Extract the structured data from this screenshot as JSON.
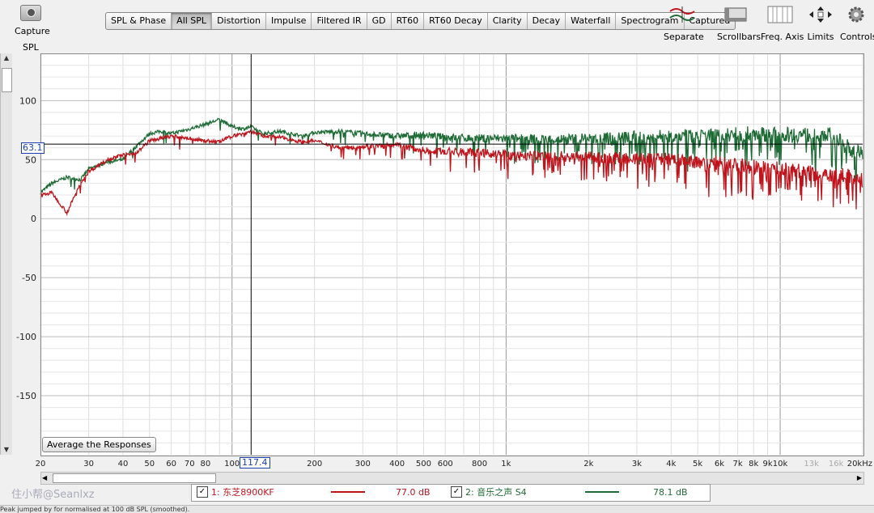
{
  "toolbar": {
    "capture_label": "Capture",
    "tabs": [
      {
        "label": "SPL & Phase",
        "active": false
      },
      {
        "label": "All SPL",
        "active": true
      },
      {
        "label": "Distortion",
        "active": false
      },
      {
        "label": "Impulse",
        "active": false
      },
      {
        "label": "Filtered IR",
        "active": false
      },
      {
        "label": "GD",
        "active": false
      },
      {
        "label": "RT60",
        "active": false
      },
      {
        "label": "RT60 Decay",
        "active": false
      },
      {
        "label": "Clarity",
        "active": false
      },
      {
        "label": "Decay",
        "active": false
      },
      {
        "label": "Waterfall",
        "active": false
      },
      {
        "label": "Spectrogram",
        "active": false
      },
      {
        "label": "Captured",
        "active": false
      }
    ],
    "right_tools": {
      "separate": "Separate",
      "scrollbars": "Scrollbars",
      "freq_axis": "Freq. Axis",
      "limits": "Limits",
      "controls": "Controls"
    }
  },
  "plot": {
    "y_axis_label": "SPL",
    "average_button": "Average the Responses",
    "cursor_x_readout": "117.4",
    "cursor_y_readout": "63.1",
    "cursor_x_hz": 117.4,
    "cursor_y_db": 63.1
  },
  "chart_data": {
    "type": "line",
    "x_scale": "log",
    "xlim": [
      20,
      20000
    ],
    "ylim": [
      -200,
      140
    ],
    "grid": true,
    "x_tick_labels": [
      "20",
      "30",
      "40",
      "50",
      "60",
      "70",
      "80",
      "100",
      "200",
      "300",
      "400",
      "500",
      "600",
      "800",
      "1k",
      "2k",
      "3k",
      "4k",
      "5k",
      "6k",
      "7k",
      "8k",
      "9k",
      "10k",
      "13k",
      "16k",
      "20kHz"
    ],
    "x_tick_values": [
      20,
      30,
      40,
      50,
      60,
      70,
      80,
      100,
      200,
      300,
      400,
      500,
      600,
      800,
      1000,
      2000,
      3000,
      4000,
      5000,
      6000,
      7000,
      8000,
      9000,
      10000,
      13000,
      16000,
      20000
    ],
    "x_tick_dim": [
      "13k",
      "16k"
    ],
    "y_ticks": [
      100,
      50,
      0,
      -50,
      -100,
      -150
    ],
    "y_tick_labels": [
      "100",
      "50",
      "0",
      "-50",
      "-100",
      "-150"
    ],
    "series": [
      {
        "name": "1: 东芝8900KF",
        "color": "#c0141c",
        "x": [
          20,
          22,
          25,
          28,
          30,
          35,
          40,
          45,
          50,
          55,
          60,
          70,
          80,
          90,
          100,
          110,
          117,
          130,
          150,
          180,
          200,
          250,
          300,
          400,
          500,
          600,
          800,
          1000,
          1500,
          2000,
          3000,
          4000,
          5000,
          6000,
          7000,
          8000,
          10000,
          12000,
          15000,
          18000,
          20000
        ],
        "y": [
          20,
          22,
          5,
          30,
          40,
          50,
          54,
          56,
          66,
          68,
          70,
          68,
          66,
          65,
          70,
          72,
          74,
          70,
          69,
          65,
          66,
          60,
          61,
          62,
          58,
          57,
          56,
          54,
          53,
          52,
          51,
          50,
          48,
          47,
          45,
          44,
          43,
          40,
          38,
          36,
          32
        ]
      },
      {
        "name": "2: 音乐之声 S4",
        "color": "#1e6b35",
        "x": [
          20,
          22,
          25,
          28,
          30,
          35,
          40,
          45,
          50,
          55,
          60,
          70,
          80,
          90,
          100,
          110,
          117,
          130,
          150,
          180,
          200,
          250,
          300,
          400,
          500,
          600,
          800,
          1000,
          1500,
          2000,
          3000,
          4000,
          5000,
          6000,
          7000,
          8000,
          10000,
          12000,
          15000,
          18000,
          20000
        ],
        "y": [
          22,
          30,
          35,
          33,
          42,
          48,
          50,
          62,
          72,
          74,
          72,
          76,
          80,
          84,
          78,
          76,
          78,
          72,
          74,
          70,
          73,
          74,
          72,
          70,
          71,
          69,
          68,
          68,
          67,
          68,
          69,
          70,
          70,
          71,
          71,
          72,
          71,
          71,
          72,
          60,
          55
        ]
      }
    ]
  },
  "legend": {
    "items": [
      {
        "label": "1: 东芝8900KF",
        "value": "77.0 dB",
        "color": "#c0141c",
        "checked": true
      },
      {
        "label": "2: 音乐之声 S4",
        "value": "78.1 dB",
        "color": "#1e6b35",
        "checked": true
      }
    ],
    "check_mark": "✓"
  },
  "watermark": "住小帮@Seanlxz",
  "status_text": "Peak jumped by for normalised at 100 dB SPL (smoothed)."
}
